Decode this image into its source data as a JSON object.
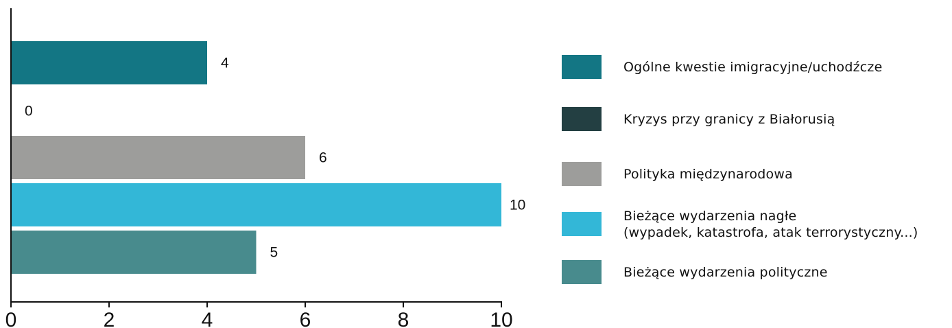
{
  "chart_data": {
    "type": "bar",
    "orientation": "horizontal",
    "categories": [
      "Ogólne kwestie imigracyjne/uchodźcze",
      "Kryzys przy granicy z Białorusią",
      "Polityka międzynarodowa",
      "Bieżące wydarzenia nagłe (wypadek, katastrofa, atak terrorystyczny...)",
      "Bieżące wydarzenia polityczne"
    ],
    "values": [
      4,
      0,
      6,
      10,
      5
    ],
    "colors": [
      "#137684",
      "#233f42",
      "#9d9d9b",
      "#33b7d7",
      "#488b8d"
    ],
    "xlim": [
      0,
      10
    ],
    "xticks": [
      "0",
      "2",
      "4",
      "6",
      "8",
      "10"
    ],
    "data_labels": [
      "4",
      "0",
      "6",
      "10",
      "5"
    ],
    "grid": false,
    "legend_position": "right"
  },
  "legend": {
    "items": [
      {
        "lines": [
          "Ogólne kwestie imigracyjne/uchodźcze"
        ],
        "color": "#137684"
      },
      {
        "lines": [
          "Kryzys przy granicy z Białorusią"
        ],
        "color": "#233f42"
      },
      {
        "lines": [
          "Polityka międzynarodowa"
        ],
        "color": "#9d9d9b"
      },
      {
        "lines": [
          "Bieżące wydarzenia nagłe",
          "(wypadek, katastrofa, atak terrorystyczny...)"
        ],
        "color": "#33b7d7"
      },
      {
        "lines": [
          "Bieżące wydarzenia polityczne"
        ],
        "color": "#488b8d"
      }
    ]
  }
}
